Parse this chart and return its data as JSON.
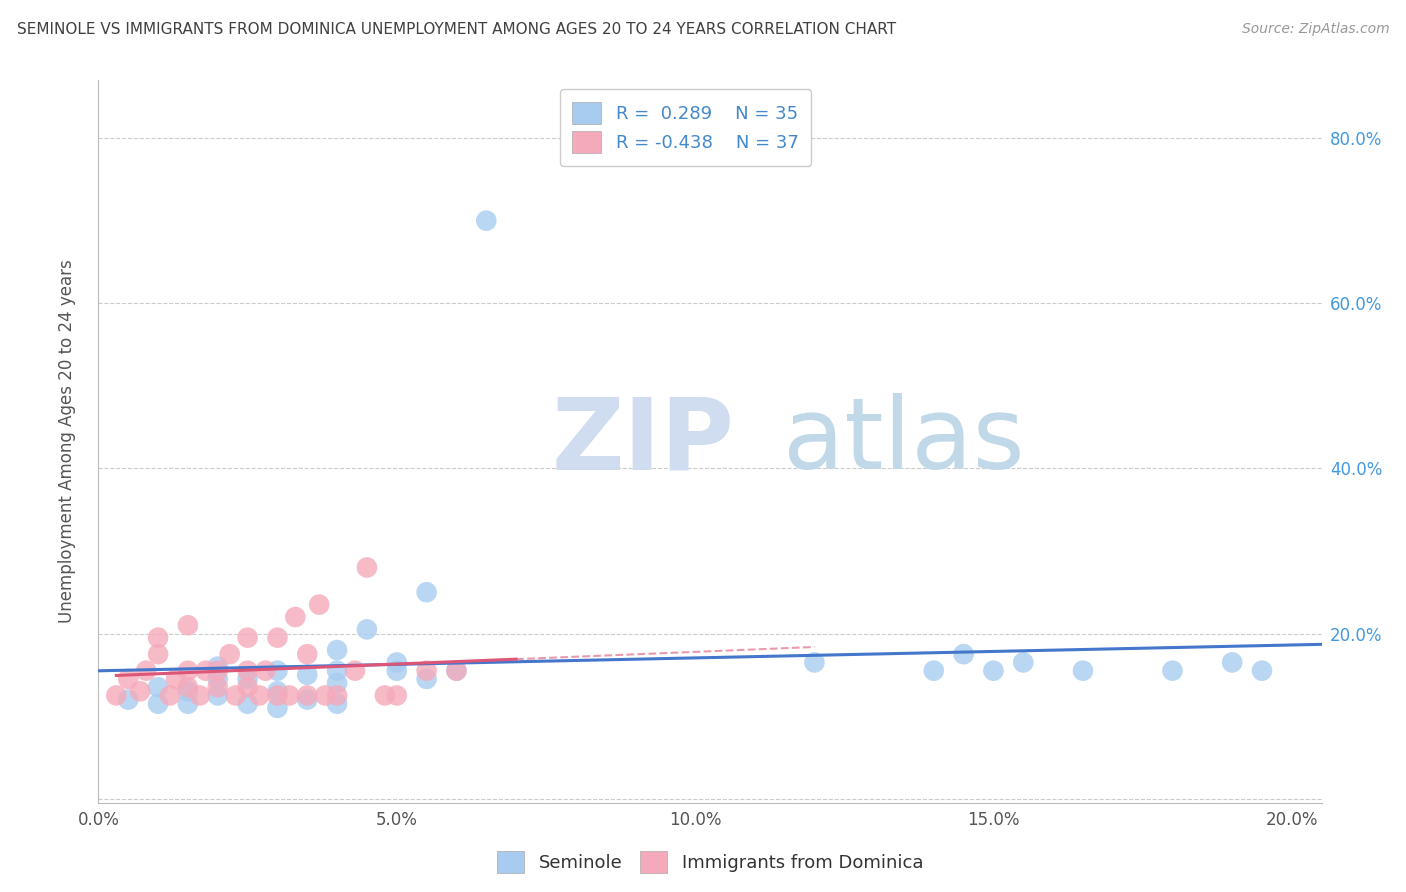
{
  "title": "SEMINOLE VS IMMIGRANTS FROM DOMINICA UNEMPLOYMENT AMONG AGES 20 TO 24 YEARS CORRELATION CHART",
  "source": "Source: ZipAtlas.com",
  "ylabel": "Unemployment Among Ages 20 to 24 years",
  "xlim": [
    0.0,
    0.205
  ],
  "ylim": [
    -0.005,
    0.87
  ],
  "xticks": [
    0.0,
    0.05,
    0.1,
    0.15,
    0.2
  ],
  "yticks": [
    0.0,
    0.2,
    0.4,
    0.6,
    0.8
  ],
  "xtick_labels": [
    "0.0%",
    "5.0%",
    "10.0%",
    "15.0%",
    "20.0%"
  ],
  "right_ytick_labels": [
    "",
    "20.0%",
    "40.0%",
    "60.0%",
    "80.0%"
  ],
  "blue_color": "#A8CCF0",
  "pink_color": "#F5AABB",
  "blue_line_color": "#4477CC",
  "pink_line_color": "#DD5577",
  "background_color": "#FFFFFF",
  "grid_color": "#CCCCCC",
  "title_color": "#404040",
  "watermark_left": "ZIP",
  "watermark_right": "atlas",
  "seminole_x": [
    0.005,
    0.01,
    0.01,
    0.015,
    0.015,
    0.02,
    0.02,
    0.02,
    0.025,
    0.025,
    0.03,
    0.03,
    0.03,
    0.035,
    0.035,
    0.04,
    0.04,
    0.04,
    0.04,
    0.045,
    0.05,
    0.05,
    0.055,
    0.055,
    0.06,
    0.065,
    0.12,
    0.14,
    0.145,
    0.15,
    0.155,
    0.165,
    0.18,
    0.19,
    0.195
  ],
  "seminole_y": [
    0.12,
    0.115,
    0.135,
    0.115,
    0.13,
    0.125,
    0.145,
    0.16,
    0.115,
    0.145,
    0.11,
    0.13,
    0.155,
    0.12,
    0.15,
    0.115,
    0.14,
    0.155,
    0.18,
    0.205,
    0.155,
    0.165,
    0.145,
    0.25,
    0.155,
    0.7,
    0.165,
    0.155,
    0.175,
    0.155,
    0.165,
    0.155,
    0.155,
    0.165,
    0.155
  ],
  "dominica_x": [
    0.003,
    0.005,
    0.007,
    0.008,
    0.01,
    0.01,
    0.012,
    0.013,
    0.015,
    0.015,
    0.015,
    0.017,
    0.018,
    0.02,
    0.02,
    0.022,
    0.023,
    0.025,
    0.025,
    0.025,
    0.027,
    0.028,
    0.03,
    0.03,
    0.032,
    0.033,
    0.035,
    0.035,
    0.037,
    0.038,
    0.04,
    0.043,
    0.045,
    0.048,
    0.05,
    0.055,
    0.06
  ],
  "dominica_y": [
    0.125,
    0.145,
    0.13,
    0.155,
    0.175,
    0.195,
    0.125,
    0.145,
    0.135,
    0.155,
    0.21,
    0.125,
    0.155,
    0.135,
    0.155,
    0.175,
    0.125,
    0.135,
    0.155,
    0.195,
    0.125,
    0.155,
    0.125,
    0.195,
    0.125,
    0.22,
    0.125,
    0.175,
    0.235,
    0.125,
    0.125,
    0.155,
    0.28,
    0.125,
    0.125,
    0.155,
    0.155
  ],
  "pink_line_x_end": 0.07,
  "pink_line_dashed_x_end": 0.12,
  "blue_legend_label": "R =  0.289    N = 35",
  "pink_legend_label": "R = -0.438    N = 37",
  "legend_label_seminole": "Seminole",
  "legend_label_dominica": "Immigrants from Dominica"
}
